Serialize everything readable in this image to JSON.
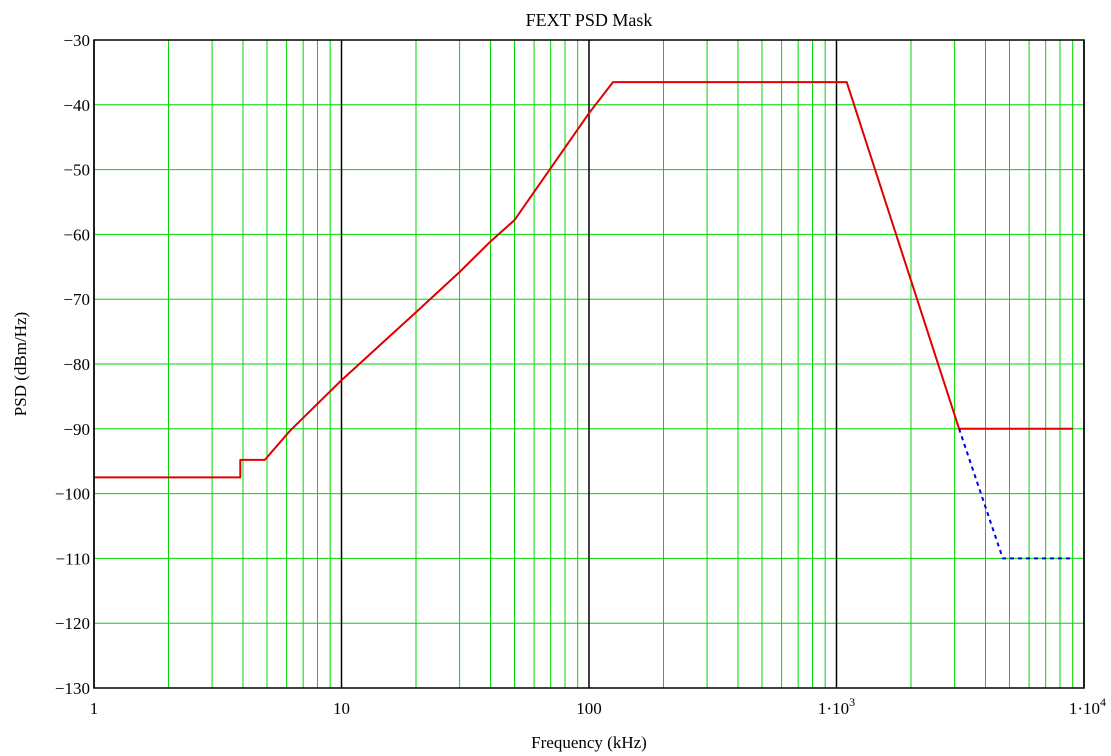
{
  "chart_data": {
    "type": "line",
    "title": "FEXT PSD Mask",
    "xlabel": "Frequency (kHz)",
    "ylabel": "PSD (dBm/Hz)",
    "x_scale": "log",
    "xlim": [
      1,
      10000
    ],
    "ylim": [
      -130,
      -30
    ],
    "grid": true,
    "legend": "none",
    "x_ticks": [
      {
        "value": 1,
        "label": "1"
      },
      {
        "value": 10,
        "label": "10"
      },
      {
        "value": 100,
        "label": "100"
      },
      {
        "value": 1000,
        "label": "1·10",
        "exponent": "3"
      },
      {
        "value": 10000,
        "label": "1·10",
        "exponent": "4"
      }
    ],
    "y_ticks": [
      {
        "value": -30,
        "label": "−30"
      },
      {
        "value": -40,
        "label": "−40"
      },
      {
        "value": -50,
        "label": "−50"
      },
      {
        "value": -60,
        "label": "−60"
      },
      {
        "value": -70,
        "label": "−70"
      },
      {
        "value": -80,
        "label": "−80"
      },
      {
        "value": -90,
        "label": "−90"
      },
      {
        "value": -100,
        "label": "−100"
      },
      {
        "value": -110,
        "label": "−110"
      },
      {
        "value": -120,
        "label": "−120"
      },
      {
        "value": -130,
        "label": "−130"
      }
    ],
    "series": [
      {
        "style": "solid",
        "color": "#e00000",
        "x": [
          1,
          3.9,
          3.9,
          4.9,
          6.2,
          10,
          20,
          30,
          40,
          50,
          100,
          125,
          1100,
          3130,
          9000
        ],
        "y": [
          -97.5,
          -97.5,
          -94.8,
          -94.8,
          -90.3,
          -82.5,
          -72.0,
          -65.8,
          -61.1,
          -57.8,
          -41.3,
          -36.5,
          -36.5,
          -90.0,
          -90.0
        ]
      },
      {
        "style": "dashed",
        "color": "#0000e0",
        "x": [
          3130,
          4700,
          9000
        ],
        "y": [
          -90.0,
          -110.0,
          -110.0
        ]
      }
    ],
    "colors": {
      "minor_grid": "#00d800",
      "major_grid": "#000000",
      "border": "#000000"
    }
  }
}
